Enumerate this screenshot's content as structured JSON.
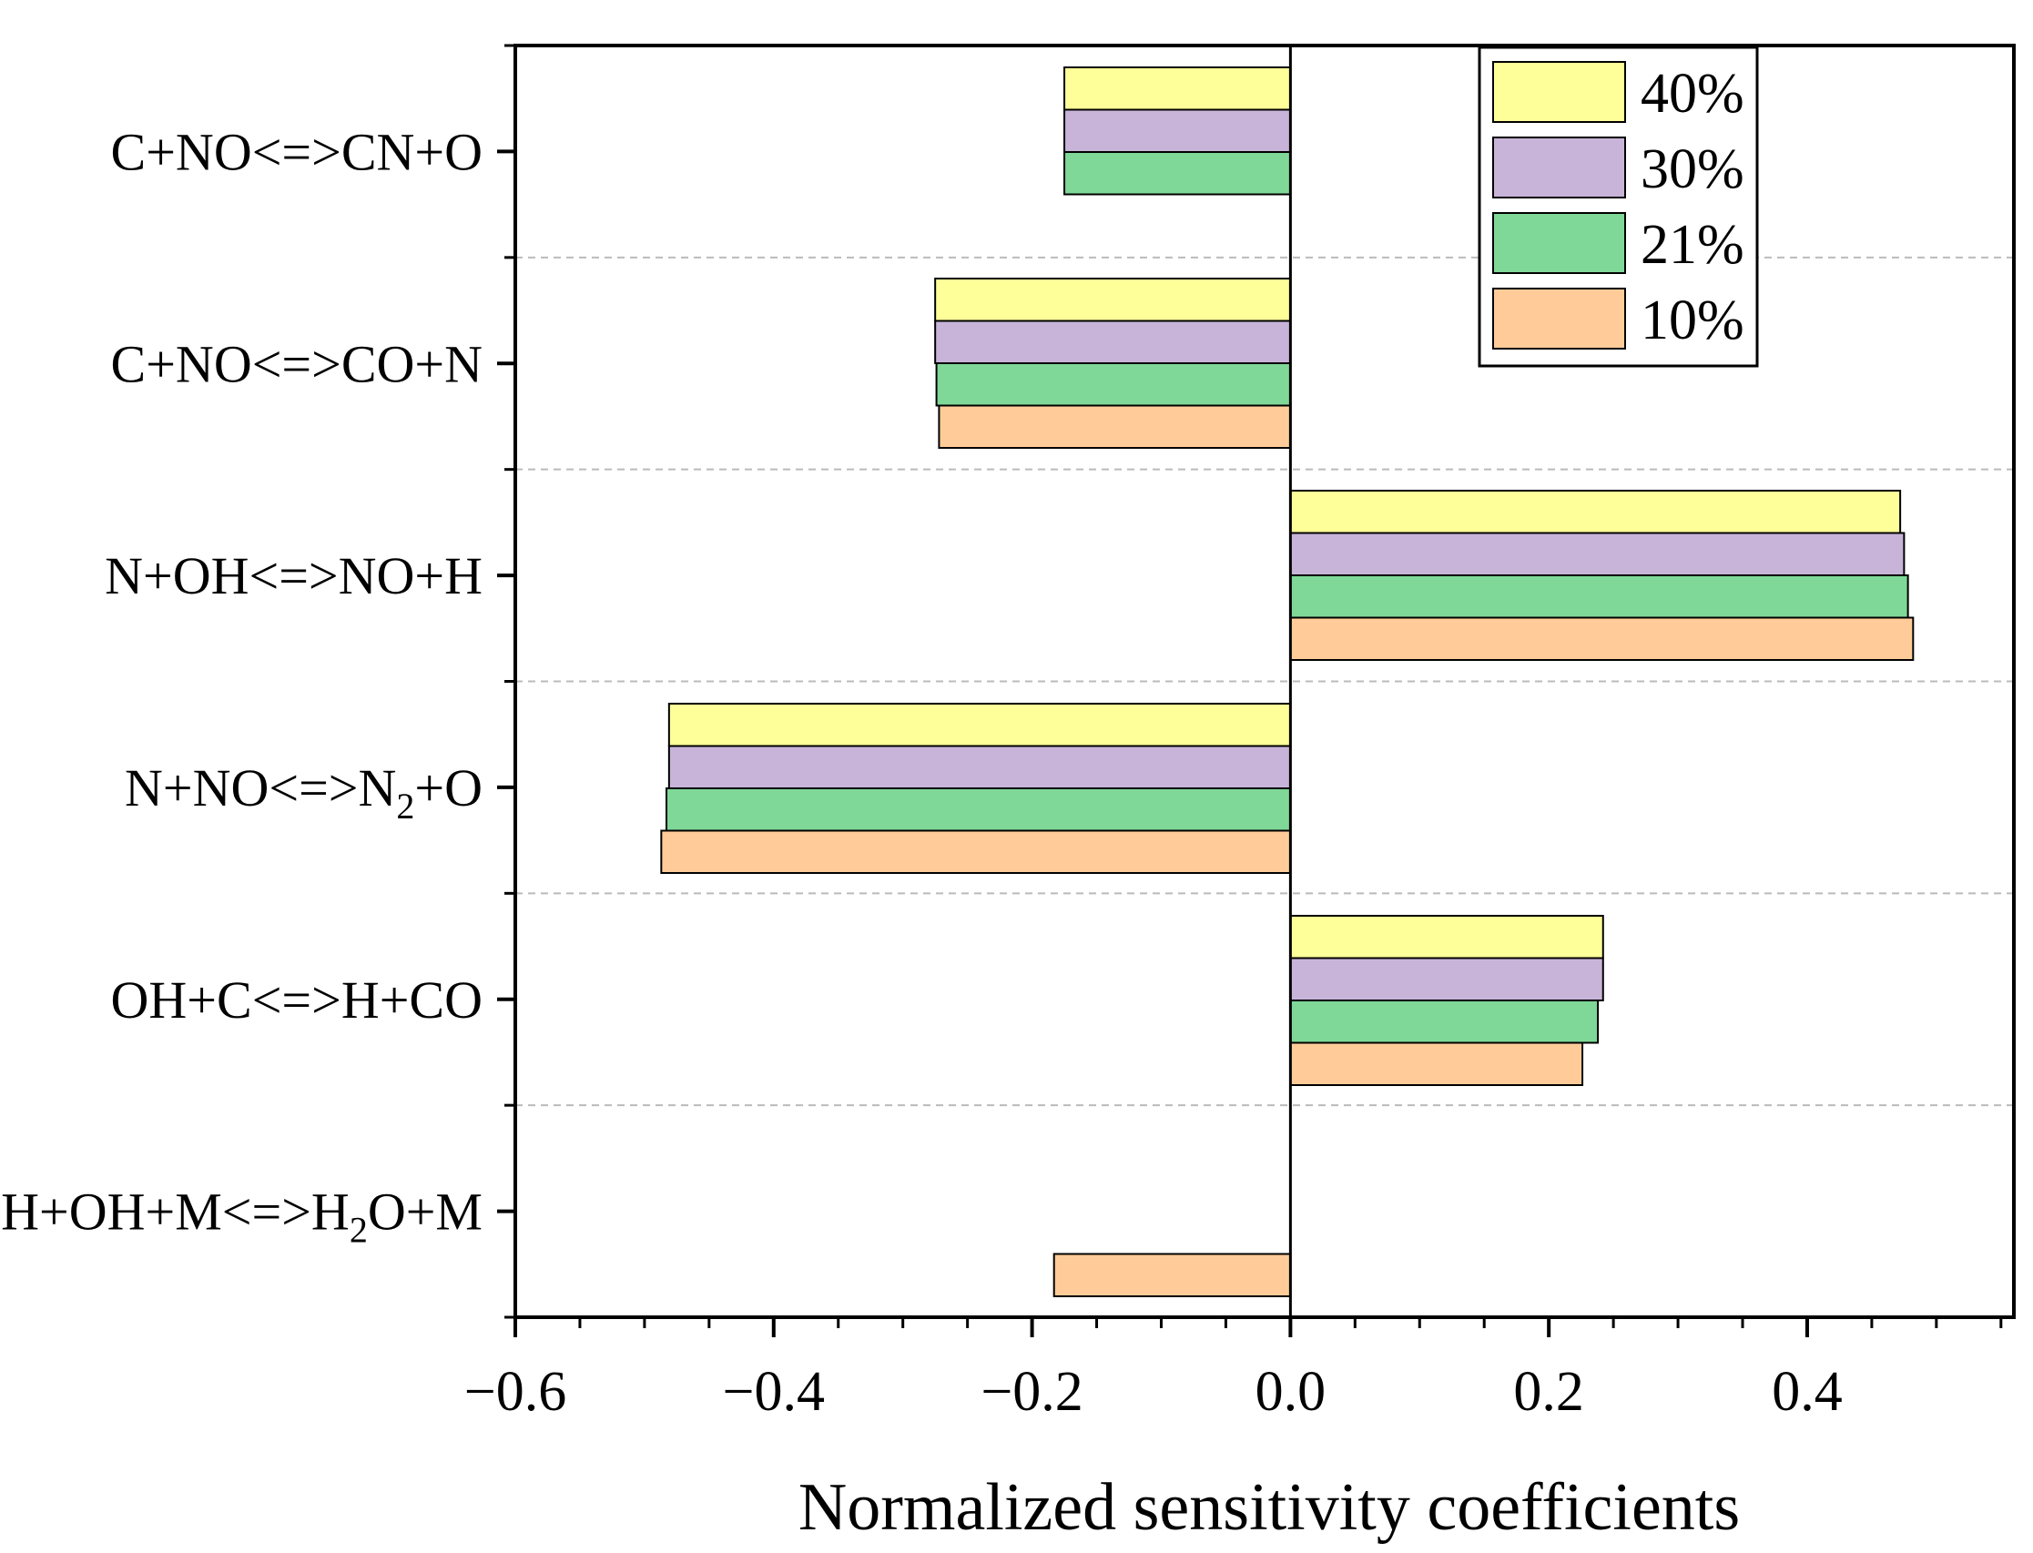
{
  "chart_data": {
    "type": "bar",
    "orientation": "horizontal",
    "title": "",
    "xlabel": "Normalized sensitivity coefficients",
    "ylabel": "",
    "xlim": [
      -0.6,
      0.56
    ],
    "xticks": [
      -0.6,
      -0.4,
      -0.2,
      0.0,
      0.2,
      0.4
    ],
    "xtick_labels": [
      "−0.6",
      "−0.4",
      "−0.2",
      "0.0",
      "0.2",
      "0.4"
    ],
    "grid": "horizontal dashed separators between categories",
    "legend_position": "top-right",
    "categories": [
      {
        "text": "C+NO<=>CN+O",
        "sub": "",
        "post": ""
      },
      {
        "text": "C+NO<=>CO+N",
        "sub": "",
        "post": ""
      },
      {
        "text": "N+OH<=>NO+H",
        "sub": "",
        "post": ""
      },
      {
        "text": "N+NO<=>N",
        "sub": "2",
        "post": "+O"
      },
      {
        "text": "OH+C<=>H+CO",
        "sub": "",
        "post": ""
      },
      {
        "text": "H+OH+M<=>H",
        "sub": "2",
        "post": "O+M"
      }
    ],
    "series": [
      {
        "name": "40%",
        "color": "#ffff99",
        "values": [
          -0.175,
          -0.275,
          0.472,
          -0.481,
          0.242,
          null
        ]
      },
      {
        "name": "30%",
        "color": "#c8b4d9",
        "values": [
          -0.175,
          -0.275,
          0.475,
          -0.481,
          0.242,
          null
        ]
      },
      {
        "name": "21%",
        "color": "#7fd897",
        "values": [
          -0.175,
          -0.274,
          0.478,
          -0.483,
          0.238,
          null
        ]
      },
      {
        "name": "10%",
        "color": "#ffcc99",
        "values": [
          null,
          -0.272,
          0.482,
          -0.487,
          0.226,
          -0.183
        ]
      }
    ]
  }
}
